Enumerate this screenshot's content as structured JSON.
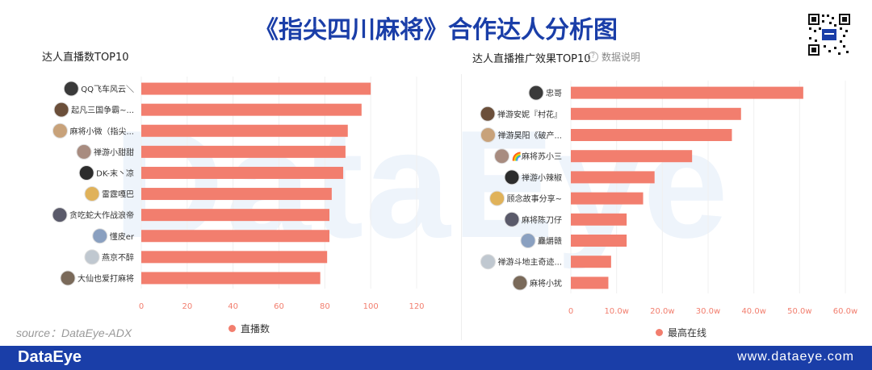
{
  "header": {
    "title": "《指尖四川麻将》合作达人分析图"
  },
  "watermark": "DataEye",
  "source": "source：DataEye-ADX",
  "footer": {
    "brand": "DataEye",
    "website": "www.dataeye.com"
  },
  "colors": {
    "bar": "#f27e6e",
    "title": "#1a3ea8",
    "footer": "#1a3ea8"
  },
  "chart_data": [
    {
      "type": "bar",
      "orientation": "horizontal",
      "title": "达人直播数TOP10",
      "categories": [
        "QQ飞车风云＼",
        "起凡三国争霸~...",
        "麻将小微（指尖...",
        "禅游小甜甜",
        "DK-末丶凉",
        "雷霆嘎巴",
        "贪吃蛇大作战浪帝",
        "懂皮er",
        "燕京不醉",
        "大仙也爱打麻将"
      ],
      "series": [
        {
          "name": "直播数",
          "values": [
            100,
            96,
            90,
            89,
            88,
            83,
            82,
            82,
            81,
            78
          ]
        }
      ],
      "xlim": [
        0,
        120
      ],
      "xticks": [
        "0",
        "20",
        "40",
        "60",
        "80",
        "100",
        "120"
      ],
      "legend_position": "bottom"
    },
    {
      "type": "bar",
      "orientation": "horizontal",
      "title": "达人直播推广效果TOP10",
      "help_text": "数据说明",
      "categories": [
        "忠哥",
        "禅游安妮『村花』",
        "禅游昊阳《破产...",
        "🌈麻将苏小三",
        "禅游小辣椒",
        "顾念故事分享~",
        "麻将陈刀仔",
        "麤爝赣",
        "禅游斗地主奇迹...",
        "麻将小扰"
      ],
      "series": [
        {
          "name": "最高在线",
          "values": [
            50.8,
            37.2,
            35.2,
            26.5,
            18.3,
            15.8,
            12.2,
            12.2,
            8.8,
            8.2
          ]
        }
      ],
      "xlim": [
        0,
        60
      ],
      "xticks": [
        "0",
        "10.0w",
        "20.0w",
        "30.0w",
        "40.0w",
        "50.0w",
        "60.0w"
      ],
      "legend_position": "bottom"
    }
  ]
}
